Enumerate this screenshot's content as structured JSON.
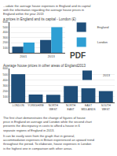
{
  "title": "...udate the average house expenses in England and its capital\nwith the information regarding the average house prices in\nEngland within the year 2013",
  "annotations": [
    "The first chart demonstrates the change of figures of house price in England on average and London while the second chart presents the discrepancy in costs to afford a house in 6 separate regions of England in 2013.",
    "It can be easily seen from the graph that in general, accommodation expenses in Britain experienced an upward trend throughout the period. To elaborate, house expenses in London is the highest one in comparison with other areas."
  ],
  "chart_data": [
    {
      "type": "bar",
      "title": "a prices in England and its capital - London (£)",
      "categories": [
        "2001",
        "2013"
      ],
      "series": [
        {
          "name": "England",
          "color": "#1f4e79",
          "values": [
            120000,
            250000
          ]
        },
        {
          "name": "London",
          "color": "#2e9fd4",
          "values": [
            200000,
            500000
          ]
        }
      ],
      "ylim": [
        0,
        600000
      ],
      "yticks": [
        {
          "value": 100000,
          "label": "100"
        },
        {
          "value": 200000,
          "label": "200"
        },
        {
          "value": 300000,
          "label": "300"
        },
        {
          "value": 400000,
          "label": "400"
        },
        {
          "value": 500000,
          "label": "500"
        },
        {
          "value": 600000,
          "label": "600"
        }
      ],
      "grid": true,
      "legend": "right",
      "annotations": [
        "PDF"
      ]
    },
    {
      "type": "bar",
      "title": "Average house prices in other areas of England2013",
      "categories": [
        "LONDON",
        "YORKSHIRE",
        "NORTH WEST",
        "NORTH EAST",
        "EAST MIDLANDS",
        "SOUTH WEST"
      ],
      "series": [
        {
          "name": "2013",
          "color": "#1f4e79",
          "values": [
            500000,
            140000,
            135000,
            290000,
            250000,
            200000
          ]
        }
      ],
      "ylim": [
        0,
        600000
      ],
      "yticks": [
        {
          "value": 100000,
          "label": "100"
        },
        {
          "value": 200000,
          "label": "200"
        },
        {
          "value": 300000,
          "label": "300"
        },
        {
          "value": 400000,
          "label": "400"
        },
        {
          "value": 500000,
          "label": "500"
        },
        {
          "value": 600000,
          "label": "600"
        }
      ],
      "grid": true,
      "legend": "upper right"
    }
  ]
}
